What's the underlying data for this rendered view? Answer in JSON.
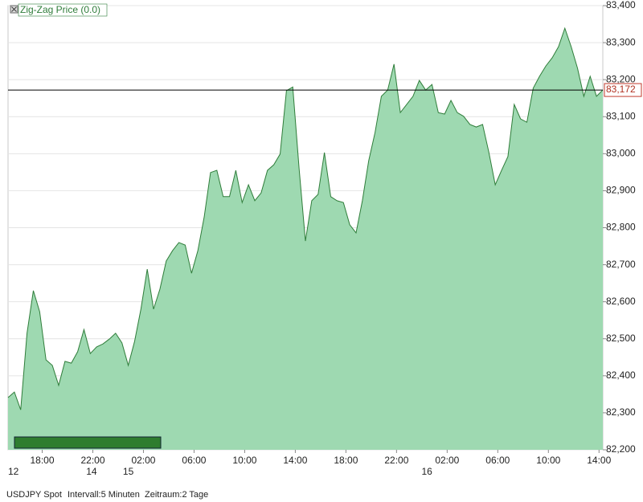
{
  "chart_data": {
    "type": "area",
    "x": [
      0,
      0.5,
      1,
      1.5,
      2,
      2.5,
      3,
      3.5,
      4,
      4.5,
      5,
      5.5,
      6,
      6.5,
      7,
      7.5,
      8,
      8.5,
      9,
      9.5,
      10,
      10.5,
      11,
      11.5,
      12,
      12.5,
      13,
      13.5,
      14,
      14.5,
      15,
      15.5,
      16,
      16.5,
      17,
      17.5,
      18,
      18.5,
      19,
      19.5,
      20,
      20.5,
      21,
      21.5,
      22,
      22.5,
      23,
      23.5,
      24,
      24.5,
      25,
      25.5,
      26,
      26.5,
      27,
      27.5,
      28,
      28.5,
      29,
      29.5,
      30,
      30.5,
      31,
      31.5,
      32,
      32.5,
      33,
      33.5,
      34,
      34.5,
      35,
      35.5,
      36,
      36.5,
      37,
      37.5,
      38,
      38.5,
      39,
      39.5,
      40,
      40.5,
      41,
      41.5,
      42,
      42.5,
      43,
      43.5,
      44,
      44.5,
      45,
      45.5,
      46,
      46.5,
      47
    ],
    "series": [
      {
        "name": "Zig-Zag Price (0.0)",
        "color": "#9ed9b1",
        "line_color": "#2f7d3a",
        "values": [
          82341,
          82356,
          82308,
          82515,
          82630,
          82573,
          82443,
          82428,
          82374,
          82439,
          82434,
          82465,
          82525,
          82460,
          82478,
          82486,
          82499,
          82515,
          82489,
          82428,
          82493,
          82580,
          82688,
          82580,
          82634,
          82710,
          82738,
          82760,
          82753,
          82677,
          82738,
          82829,
          82949,
          82955,
          82884,
          82884,
          82955,
          82868,
          82916,
          82873,
          82894,
          82955,
          82970,
          82999,
          83170,
          83180,
          82960,
          82764,
          82873,
          82890,
          83003,
          82884,
          82873,
          82868,
          82808,
          82786,
          82873,
          82981,
          83057,
          83155,
          83172,
          83242,
          83111,
          83133,
          83155,
          83198,
          83172,
          83187,
          83111,
          83107,
          83144,
          83111,
          83101,
          83079,
          83072,
          83079,
          83003,
          82916,
          82955,
          82992,
          83133,
          83094,
          83085,
          83177,
          83209,
          83237,
          83259,
          83289,
          83339,
          83289,
          83231,
          83155,
          83209,
          83155,
          83172
        ]
      }
    ],
    "xlim": [
      0,
      47
    ],
    "ylim": [
      82200,
      83400
    ],
    "yticks": [
      {
        "value": 82200,
        "label": "82,200"
      },
      {
        "value": 82300,
        "label": "82,300"
      },
      {
        "value": 82400,
        "label": "82,400"
      },
      {
        "value": 82500,
        "label": "82,500"
      },
      {
        "value": 82600,
        "label": "82,600"
      },
      {
        "value": 82700,
        "label": "82,700"
      },
      {
        "value": 82800,
        "label": "82,800"
      },
      {
        "value": 82900,
        "label": "82,900"
      },
      {
        "value": 83000,
        "label": "83,000"
      },
      {
        "value": 83100,
        "label": "83,100"
      },
      {
        "value": 83200,
        "label": "83,200"
      },
      {
        "value": 83300,
        "label": "83,300"
      },
      {
        "value": 83400,
        "label": "83,400"
      }
    ],
    "xticks": [
      {
        "value": 2.7,
        "label": "18:00"
      },
      {
        "value": 6.7,
        "label": "22:00"
      },
      {
        "value": 10.7,
        "label": "02:00"
      },
      {
        "value": 14.7,
        "label": "06:00"
      },
      {
        "value": 18.7,
        "label": "10:00"
      },
      {
        "value": 22.7,
        "label": "14:00"
      },
      {
        "value": 26.7,
        "label": "18:00"
      },
      {
        "value": 30.7,
        "label": "22:00"
      },
      {
        "value": 34.7,
        "label": "02:00"
      },
      {
        "value": 38.7,
        "label": "06:00"
      },
      {
        "value": 42.7,
        "label": "10:00"
      },
      {
        "value": 46.7,
        "label": "14:00"
      }
    ],
    "date_ticks": [
      {
        "value": 0,
        "label": "12"
      },
      {
        "value": 6.6,
        "label": "14"
      },
      {
        "value": 9.5,
        "label": "15"
      },
      {
        "value": 33.1,
        "label": "16"
      }
    ],
    "last_price": {
      "value": 83172,
      "label": "83,172"
    },
    "grid": true,
    "footer": [
      "USDJPY Spot",
      "Intervall:5 Minuten",
      "Zeitraum:2 Tage"
    ]
  }
}
